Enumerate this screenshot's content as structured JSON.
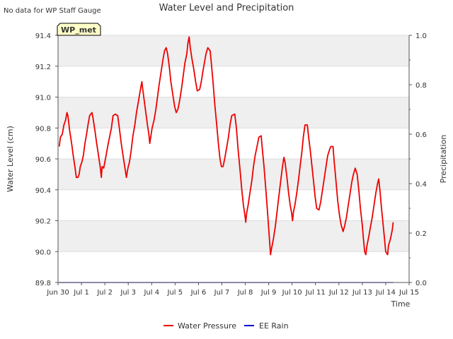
{
  "chart_data": {
    "type": "line",
    "title": "Water Level and Precipitation",
    "note": "No data for WP Staff Gauge",
    "station_label": "WP_met",
    "xlabel": "Time",
    "ylabel_left": "Water Level (cm)",
    "ylabel_right": "Precipitation",
    "x_unit": "days since Jun 30",
    "xlim": [
      0,
      15
    ],
    "x_ticks": [
      {
        "x": 0,
        "label": "Jun 30"
      },
      {
        "x": 1,
        "label": "Jul 1"
      },
      {
        "x": 2,
        "label": "Jul 2"
      },
      {
        "x": 3,
        "label": "Jul 3"
      },
      {
        "x": 4,
        "label": "Jul 4"
      },
      {
        "x": 5,
        "label": "Jul 5"
      },
      {
        "x": 6,
        "label": "Jul 6"
      },
      {
        "x": 7,
        "label": "Jul 7"
      },
      {
        "x": 8,
        "label": "Jul 8"
      },
      {
        "x": 9,
        "label": "Jul 9"
      },
      {
        "x": 10,
        "label": "Jul 10"
      },
      {
        "x": 11,
        "label": "Jul 11"
      },
      {
        "x": 12,
        "label": "Jul 12"
      },
      {
        "x": 13,
        "label": "Jul 13"
      },
      {
        "x": 14,
        "label": "Jul 14"
      },
      {
        "x": 15,
        "label": "Jul 15"
      }
    ],
    "ylim_left": [
      89.8,
      91.4
    ],
    "y_ticks_left": [
      "89.8",
      "90.0",
      "90.2",
      "90.4",
      "90.6",
      "90.8",
      "91.0",
      "91.2",
      "91.4"
    ],
    "ylim_right": [
      0.0,
      1.0
    ],
    "y_ticks_right": [
      "0.0",
      "0.2",
      "0.4",
      "0.6",
      "0.8",
      "1.0"
    ],
    "grid": true,
    "legend_position": "bottom-center",
    "series": [
      {
        "name": "Water Pressure",
        "axis": "left",
        "color": "#ee0000",
        "points": [
          [
            0.05,
            90.68
          ],
          [
            0.1,
            90.74
          ],
          [
            0.18,
            90.76
          ],
          [
            0.25,
            90.82
          ],
          [
            0.32,
            90.85
          ],
          [
            0.38,
            90.9
          ],
          [
            0.42,
            90.88
          ],
          [
            0.5,
            90.78
          ],
          [
            0.58,
            90.7
          ],
          [
            0.65,
            90.62
          ],
          [
            0.72,
            90.55
          ],
          [
            0.78,
            90.48
          ],
          [
            0.85,
            90.48
          ],
          [
            0.9,
            90.5
          ],
          [
            0.95,
            90.55
          ],
          [
            1.02,
            90.58
          ],
          [
            1.08,
            90.62
          ],
          [
            1.15,
            90.7
          ],
          [
            1.22,
            90.76
          ],
          [
            1.28,
            90.82
          ],
          [
            1.35,
            90.88
          ],
          [
            1.45,
            90.9
          ],
          [
            1.5,
            90.86
          ],
          [
            1.58,
            90.78
          ],
          [
            1.65,
            90.7
          ],
          [
            1.72,
            90.63
          ],
          [
            1.8,
            90.55
          ],
          [
            1.85,
            90.48
          ],
          [
            1.88,
            90.55
          ],
          [
            1.95,
            90.54
          ],
          [
            2.0,
            90.58
          ],
          [
            2.05,
            90.62
          ],
          [
            2.12,
            90.68
          ],
          [
            2.2,
            90.74
          ],
          [
            2.28,
            90.8
          ],
          [
            2.35,
            90.88
          ],
          [
            2.45,
            90.89
          ],
          [
            2.55,
            90.88
          ],
          [
            2.62,
            90.8
          ],
          [
            2.7,
            90.7
          ],
          [
            2.78,
            90.62
          ],
          [
            2.85,
            90.55
          ],
          [
            2.92,
            90.48
          ],
          [
            2.96,
            90.52
          ],
          [
            3.0,
            90.55
          ],
          [
            3.05,
            90.58
          ],
          [
            3.12,
            90.65
          ],
          [
            3.2,
            90.75
          ],
          [
            3.28,
            90.82
          ],
          [
            3.35,
            90.9
          ],
          [
            3.42,
            90.96
          ],
          [
            3.5,
            91.03
          ],
          [
            3.58,
            91.1
          ],
          [
            3.62,
            91.05
          ],
          [
            3.68,
            90.98
          ],
          [
            3.75,
            90.9
          ],
          [
            3.82,
            90.82
          ],
          [
            3.88,
            90.76
          ],
          [
            3.92,
            90.7
          ],
          [
            3.96,
            90.74
          ],
          [
            4.02,
            90.8
          ],
          [
            4.1,
            90.85
          ],
          [
            4.18,
            90.92
          ],
          [
            4.25,
            91.0
          ],
          [
            4.32,
            91.08
          ],
          [
            4.4,
            91.16
          ],
          [
            4.48,
            91.24
          ],
          [
            4.55,
            91.3
          ],
          [
            4.62,
            91.32
          ],
          [
            4.68,
            91.28
          ],
          [
            4.75,
            91.2
          ],
          [
            4.82,
            91.1
          ],
          [
            4.9,
            91.02
          ],
          [
            4.98,
            90.94
          ],
          [
            5.05,
            90.9
          ],
          [
            5.12,
            90.92
          ],
          [
            5.2,
            90.98
          ],
          [
            5.28,
            91.06
          ],
          [
            5.35,
            91.14
          ],
          [
            5.42,
            91.22
          ],
          [
            5.5,
            91.28
          ],
          [
            5.55,
            91.35
          ],
          [
            5.6,
            91.39
          ],
          [
            5.65,
            91.32
          ],
          [
            5.72,
            91.25
          ],
          [
            5.8,
            91.18
          ],
          [
            5.88,
            91.1
          ],
          [
            5.95,
            91.04
          ],
          [
            6.05,
            91.05
          ],
          [
            6.12,
            91.1
          ],
          [
            6.18,
            91.16
          ],
          [
            6.25,
            91.22
          ],
          [
            6.32,
            91.28
          ],
          [
            6.4,
            91.32
          ],
          [
            6.5,
            91.3
          ],
          [
            6.55,
            91.22
          ],
          [
            6.62,
            91.1
          ],
          [
            6.7,
            90.95
          ],
          [
            6.78,
            90.82
          ],
          [
            6.85,
            90.7
          ],
          [
            6.92,
            90.6
          ],
          [
            6.98,
            90.55
          ],
          [
            7.05,
            90.55
          ],
          [
            7.12,
            90.6
          ],
          [
            7.2,
            90.67
          ],
          [
            7.28,
            90.74
          ],
          [
            7.35,
            90.82
          ],
          [
            7.42,
            90.88
          ],
          [
            7.55,
            90.89
          ],
          [
            7.62,
            90.8
          ],
          [
            7.7,
            90.65
          ],
          [
            7.78,
            90.52
          ],
          [
            7.85,
            90.4
          ],
          [
            7.92,
            90.3
          ],
          [
            7.98,
            90.24
          ],
          [
            8.02,
            90.19
          ],
          [
            8.06,
            90.25
          ],
          [
            8.12,
            90.3
          ],
          [
            8.2,
            90.38
          ],
          [
            8.28,
            90.46
          ],
          [
            8.35,
            90.55
          ],
          [
            8.42,
            90.62
          ],
          [
            8.5,
            90.68
          ],
          [
            8.58,
            90.74
          ],
          [
            8.68,
            90.75
          ],
          [
            8.72,
            90.68
          ],
          [
            8.8,
            90.55
          ],
          [
            8.88,
            90.4
          ],
          [
            8.95,
            90.26
          ],
          [
            9.0,
            90.15
          ],
          [
            9.05,
            90.04
          ],
          [
            9.08,
            89.98
          ],
          [
            9.12,
            90.02
          ],
          [
            9.2,
            90.08
          ],
          [
            9.28,
            90.16
          ],
          [
            9.35,
            90.25
          ],
          [
            9.42,
            90.34
          ],
          [
            9.5,
            90.44
          ],
          [
            9.58,
            90.54
          ],
          [
            9.65,
            90.61
          ],
          [
            9.7,
            90.58
          ],
          [
            9.78,
            90.48
          ],
          [
            9.85,
            90.38
          ],
          [
            9.92,
            90.3
          ],
          [
            9.98,
            90.25
          ],
          [
            10.02,
            90.2
          ],
          [
            10.06,
            90.26
          ],
          [
            10.12,
            90.3
          ],
          [
            10.2,
            90.38
          ],
          [
            10.28,
            90.47
          ],
          [
            10.35,
            90.56
          ],
          [
            10.42,
            90.65
          ],
          [
            10.48,
            90.74
          ],
          [
            10.55,
            90.82
          ],
          [
            10.65,
            90.82
          ],
          [
            10.7,
            90.75
          ],
          [
            10.78,
            90.65
          ],
          [
            10.85,
            90.55
          ],
          [
            10.92,
            90.45
          ],
          [
            10.98,
            90.36
          ],
          [
            11.05,
            90.28
          ],
          [
            11.15,
            90.27
          ],
          [
            11.22,
            90.32
          ],
          [
            11.3,
            90.4
          ],
          [
            11.38,
            90.48
          ],
          [
            11.45,
            90.55
          ],
          [
            11.52,
            90.62
          ],
          [
            11.6,
            90.66
          ],
          [
            11.65,
            90.68
          ],
          [
            11.75,
            90.68
          ],
          [
            11.8,
            90.58
          ],
          [
            11.88,
            90.45
          ],
          [
            11.95,
            90.33
          ],
          [
            12.02,
            90.24
          ],
          [
            12.1,
            90.17
          ],
          [
            12.18,
            90.13
          ],
          [
            12.25,
            90.17
          ],
          [
            12.32,
            90.22
          ],
          [
            12.4,
            90.3
          ],
          [
            12.48,
            90.38
          ],
          [
            12.55,
            90.45
          ],
          [
            12.62,
            90.5
          ],
          [
            12.7,
            90.54
          ],
          [
            12.78,
            90.5
          ],
          [
            12.85,
            90.4
          ],
          [
            12.92,
            90.28
          ],
          [
            13.0,
            90.17
          ],
          [
            13.05,
            90.08
          ],
          [
            13.1,
            90.0
          ],
          [
            13.15,
            89.98
          ],
          [
            13.2,
            90.04
          ],
          [
            13.28,
            90.1
          ],
          [
            13.35,
            90.16
          ],
          [
            13.42,
            90.22
          ],
          [
            13.5,
            90.3
          ],
          [
            13.58,
            90.38
          ],
          [
            13.65,
            90.44
          ],
          [
            13.7,
            90.47
          ],
          [
            13.75,
            90.4
          ],
          [
            13.82,
            90.28
          ],
          [
            13.9,
            90.16
          ],
          [
            13.95,
            90.08
          ],
          [
            14.0,
            90.0
          ],
          [
            14.08,
            89.98
          ],
          [
            14.12,
            90.04
          ],
          [
            14.2,
            90.08
          ],
          [
            14.28,
            90.14
          ],
          [
            14.32,
            90.19
          ]
        ]
      },
      {
        "name": "EE Rain",
        "axis": "right",
        "color": "#0000cc",
        "points": [
          [
            0.05,
            0.0
          ],
          [
            14.32,
            0.0
          ]
        ]
      }
    ]
  }
}
